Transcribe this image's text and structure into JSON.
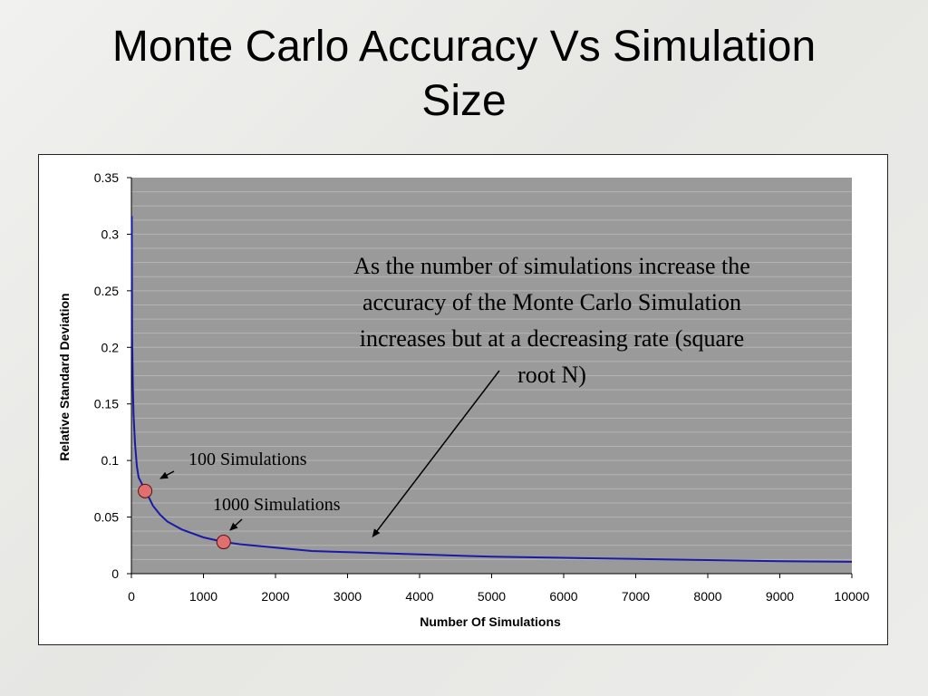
{
  "slide": {
    "title_line1": "Monte Carlo Accuracy Vs Simulation",
    "title_line2": "Size"
  },
  "chart_data": {
    "type": "line",
    "xlabel": "Number Of Simulations",
    "ylabel": "Relative Standard Deviation",
    "xlim": [
      0,
      10000
    ],
    "ylim": [
      0,
      0.35
    ],
    "x_ticks": [
      0,
      1000,
      2000,
      3000,
      4000,
      5000,
      6000,
      7000,
      8000,
      9000,
      10000
    ],
    "y_ticks": [
      "0",
      "0.05",
      "0.1",
      "0.15",
      "0.2",
      "0.25",
      "0.3",
      "0.35"
    ],
    "grid": true,
    "plot_background": "#9a9a9a",
    "series": [
      {
        "color": "#1a1aa6",
        "x": [
          5,
          10,
          20,
          30,
          50,
          75,
          100,
          150,
          200,
          300,
          400,
          500,
          700,
          1000,
          1280,
          1500,
          2000,
          2500,
          3000,
          4000,
          5000,
          6000,
          7000,
          8000,
          9000,
          10000
        ],
        "y": [
          0.316,
          0.21,
          0.165,
          0.14,
          0.115,
          0.095,
          0.085,
          0.079,
          0.073,
          0.06,
          0.052,
          0.046,
          0.039,
          0.032,
          0.028,
          0.026,
          0.023,
          0.02,
          0.019,
          0.017,
          0.015,
          0.014,
          0.013,
          0.012,
          0.011,
          0.0105
        ]
      }
    ],
    "highlights": [
      {
        "label": "100 Simulations",
        "x": 190,
        "y": 0.073
      },
      {
        "label": "1000 Simulations",
        "x": 1280,
        "y": 0.028
      }
    ],
    "annotation": {
      "lines": [
        "As the number of simulations increase the",
        "accuracy of the Monte Carlo Simulation",
        "increases but at a decreasing rate (square",
        "root N)"
      ],
      "arrow_target": {
        "x": 3400,
        "y": 0.028
      }
    },
    "highlight_color": "#e07070"
  }
}
